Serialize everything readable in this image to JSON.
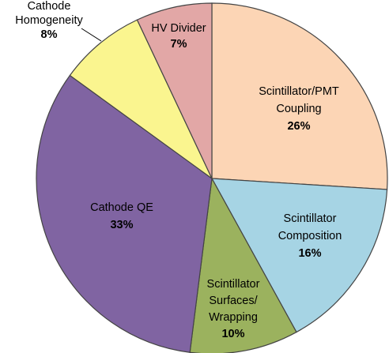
{
  "chart_data": {
    "type": "pie",
    "title": "",
    "legend": "none",
    "slices": [
      {
        "lines": [
          "Scintillator/PMT",
          "Coupling"
        ],
        "percent_label": "26%",
        "value": 26,
        "color": "#FCD5B5"
      },
      {
        "lines": [
          "Scintillator",
          "Composition"
        ],
        "percent_label": "16%",
        "value": 16,
        "color": "#A6D4E4"
      },
      {
        "lines": [
          "Scintillator",
          "Surfaces/",
          "Wrapping"
        ],
        "percent_label": "10%",
        "value": 10,
        "color": "#9BB25E"
      },
      {
        "lines": [
          "Cathode QE"
        ],
        "percent_label": "33%",
        "value": 33,
        "color": "#8064A2"
      },
      {
        "lines": [
          "Cathode",
          "Homogeneity"
        ],
        "percent_label": "8%",
        "value": 8,
        "color": "#FAF58F"
      },
      {
        "lines": [
          "HV Divider"
        ],
        "percent_label": "7%",
        "value": 7,
        "color": "#E2A7A6"
      }
    ]
  }
}
